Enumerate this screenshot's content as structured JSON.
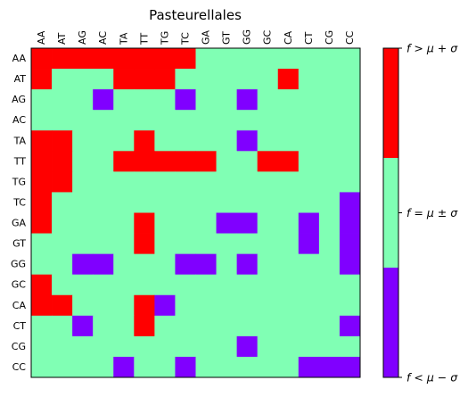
{
  "chart_data": {
    "type": "heatmap",
    "title": "Pasteurellales",
    "row_labels": [
      "AA",
      "AT",
      "AG",
      "AC",
      "TA",
      "TT",
      "TG",
      "TC",
      "GA",
      "GT",
      "GG",
      "GC",
      "CA",
      "CT",
      "CG",
      "CC"
    ],
    "col_labels": [
      "AA",
      "AT",
      "AG",
      "AC",
      "TA",
      "TT",
      "TG",
      "TC",
      "GA",
      "GT",
      "GG",
      "GC",
      "CA",
      "CT",
      "CG",
      "CC"
    ],
    "category_colors": {
      "-1": "#8000ff",
      "0": "#80ffb4",
      "1": "#ff0000"
    },
    "colorbar_labels": [
      "f < μ − σ",
      "f = μ ± σ",
      "f > μ + σ"
    ],
    "legend_position": "right",
    "grid": false,
    "values": [
      [
        1,
        1,
        1,
        1,
        1,
        1,
        1,
        1,
        0,
        0,
        0,
        0,
        0,
        0,
        0,
        0
      ],
      [
        1,
        0,
        0,
        0,
        1,
        1,
        1,
        0,
        0,
        0,
        0,
        0,
        1,
        0,
        0,
        0
      ],
      [
        0,
        0,
        0,
        -1,
        0,
        0,
        0,
        -1,
        0,
        0,
        -1,
        0,
        0,
        0,
        0,
        0
      ],
      [
        0,
        0,
        0,
        0,
        0,
        0,
        0,
        0,
        0,
        0,
        0,
        0,
        0,
        0,
        0,
        0
      ],
      [
        1,
        1,
        0,
        0,
        0,
        1,
        0,
        0,
        0,
        0,
        -1,
        0,
        0,
        0,
        0,
        0
      ],
      [
        1,
        1,
        0,
        0,
        1,
        1,
        1,
        1,
        1,
        0,
        0,
        1,
        1,
        0,
        0,
        0
      ],
      [
        1,
        1,
        0,
        0,
        0,
        0,
        0,
        0,
        0,
        0,
        0,
        0,
        0,
        0,
        0,
        0
      ],
      [
        1,
        0,
        0,
        0,
        0,
        0,
        0,
        0,
        0,
        0,
        0,
        0,
        0,
        0,
        0,
        -1
      ],
      [
        1,
        0,
        0,
        0,
        0,
        1,
        0,
        0,
        0,
        -1,
        -1,
        0,
        0,
        -1,
        0,
        -1
      ],
      [
        0,
        0,
        0,
        0,
        0,
        1,
        0,
        0,
        0,
        0,
        0,
        0,
        0,
        -1,
        0,
        -1
      ],
      [
        0,
        0,
        -1,
        -1,
        0,
        0,
        0,
        -1,
        -1,
        0,
        -1,
        0,
        0,
        0,
        0,
        -1
      ],
      [
        1,
        0,
        0,
        0,
        0,
        0,
        0,
        0,
        0,
        0,
        0,
        0,
        0,
        0,
        0,
        0
      ],
      [
        1,
        1,
        0,
        0,
        0,
        1,
        -1,
        0,
        0,
        0,
        0,
        0,
        0,
        0,
        0,
        0
      ],
      [
        0,
        0,
        -1,
        0,
        0,
        1,
        0,
        0,
        0,
        0,
        0,
        0,
        0,
        0,
        0,
        -1
      ],
      [
        0,
        0,
        0,
        0,
        0,
        0,
        0,
        0,
        0,
        0,
        -1,
        0,
        0,
        0,
        0,
        0
      ],
      [
        0,
        0,
        0,
        0,
        -1,
        0,
        0,
        -1,
        0,
        0,
        0,
        0,
        0,
        -1,
        -1,
        -1
      ]
    ]
  }
}
